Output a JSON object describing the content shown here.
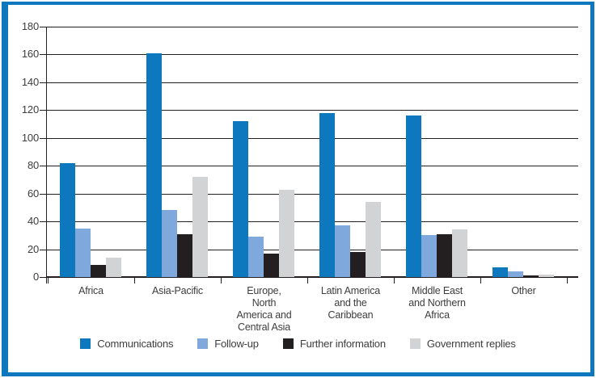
{
  "panel": {
    "border_color": "#0d78be",
    "background_color": "#ffffff"
  },
  "chart_data": {
    "type": "bar",
    "title": "",
    "xlabel": "",
    "ylabel": "",
    "ylim": [
      0,
      180
    ],
    "ytick_step": 20,
    "ytick_labels": [
      "0",
      "20",
      "40",
      "60",
      "80",
      "100",
      "120",
      "140",
      "160",
      "180"
    ],
    "grid": true,
    "legend_position": "bottom",
    "categories": [
      [
        "Africa"
      ],
      [
        "Asia-Pacific"
      ],
      [
        "Europe,",
        "North",
        "America and",
        "Central Asia"
      ],
      [
        "Latin America",
        "and the",
        "Caribbean"
      ],
      [
        "Middle East",
        "and Northern",
        "Africa"
      ],
      [
        "Other"
      ]
    ],
    "series": [
      {
        "name": "Communications",
        "color": "#0d78be",
        "values": [
          82,
          161,
          112,
          118,
          116,
          7
        ]
      },
      {
        "name": "Follow-up",
        "color": "#7fa9dc",
        "values": [
          35,
          48,
          29,
          37,
          30,
          4
        ]
      },
      {
        "name": "Further information",
        "color": "#231f20",
        "values": [
          9,
          31,
          17,
          18,
          31,
          1
        ]
      },
      {
        "name": "Government replies",
        "color": "#d2d3d4",
        "values": [
          14,
          72,
          63,
          54,
          34,
          2
        ]
      }
    ]
  }
}
